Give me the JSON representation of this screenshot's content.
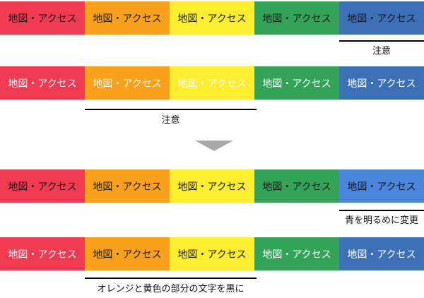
{
  "palette": {
    "red": "#ef3a52",
    "orange": "#f9a11b",
    "yellow": "#fdee30",
    "green": "#33a457",
    "blue_dark": "#3b70b7",
    "blue_bright": "#4a86dc",
    "text_black": "#1b1b1b",
    "text_white": "#ffffff",
    "underline": "#000000",
    "arrow": "#a9a9a9"
  },
  "rows": [
    {
      "name": "original-black-text",
      "blocks": [
        {
          "label": "地図・アクセス",
          "bg": "#ef3a52",
          "fg": "#1b1b1b"
        },
        {
          "label": "地図・アクセス",
          "bg": "#f9a11b",
          "fg": "#1b1b1b"
        },
        {
          "label": "地図・アクセス",
          "bg": "#fdee30",
          "fg": "#1b1b1b"
        },
        {
          "label": "地図・アクセス",
          "bg": "#33a457",
          "fg": "#1b1b1b"
        },
        {
          "label": "地図・アクセス",
          "bg": "#3b70b7",
          "fg": "#1b1b1b"
        }
      ],
      "annotation": {
        "text": "注意"
      }
    },
    {
      "name": "original-white-text",
      "blocks": [
        {
          "label": "地図・アクセス",
          "bg": "#ef3a52",
          "fg": "#ffffff"
        },
        {
          "label": "地図・アクセス",
          "bg": "#f9a11b",
          "fg": "#ffffff"
        },
        {
          "label": "地図・アクセス",
          "bg": "#fdee30",
          "fg": "#ffffff"
        },
        {
          "label": "地図・アクセス",
          "bg": "#33a457",
          "fg": "#ffffff"
        },
        {
          "label": "地図・アクセス",
          "bg": "#3b70b7",
          "fg": "#ffffff"
        }
      ],
      "annotation": {
        "text": "注意"
      }
    },
    {
      "name": "fixed-black-text-brighter-blue",
      "blocks": [
        {
          "label": "地図・アクセス",
          "bg": "#ef3a52",
          "fg": "#1b1b1b"
        },
        {
          "label": "地図・アクセス",
          "bg": "#f9a11b",
          "fg": "#1b1b1b"
        },
        {
          "label": "地図・アクセス",
          "bg": "#fdee30",
          "fg": "#1b1b1b"
        },
        {
          "label": "地図・アクセス",
          "bg": "#33a457",
          "fg": "#1b1b1b"
        },
        {
          "label": "地図・アクセス",
          "bg": "#4a86dc",
          "fg": "#1b1b1b"
        }
      ],
      "annotation": {
        "text": "青を明るめに変更"
      }
    },
    {
      "name": "fixed-white-text-black-on-warm",
      "blocks": [
        {
          "label": "地図・アクセス",
          "bg": "#ef3a52",
          "fg": "#ffffff"
        },
        {
          "label": "地図・アクセス",
          "bg": "#f9a11b",
          "fg": "#1b1b1b"
        },
        {
          "label": "地図・アクセス",
          "bg": "#fdee30",
          "fg": "#1b1b1b"
        },
        {
          "label": "地図・アクセス",
          "bg": "#33a457",
          "fg": "#ffffff"
        },
        {
          "label": "地図・アクセス",
          "bg": "#3b70b7",
          "fg": "#ffffff"
        }
      ],
      "annotation": {
        "text": "オレンジと黄色の部分の文字を黒に"
      }
    }
  ]
}
